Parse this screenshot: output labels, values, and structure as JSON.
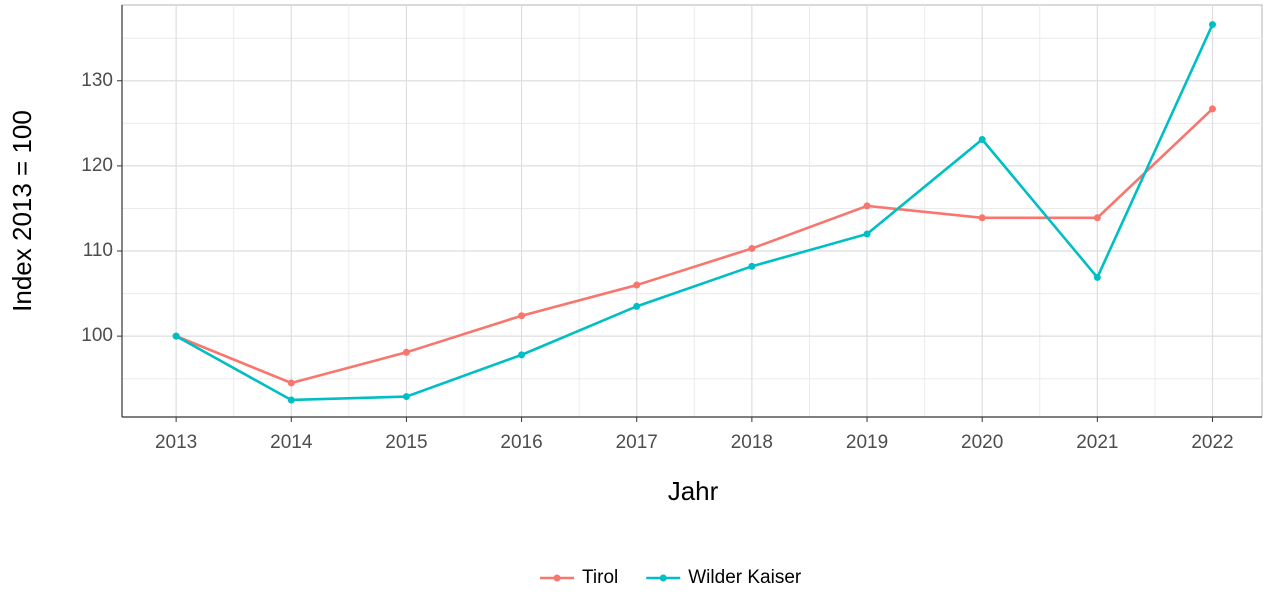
{
  "chart_data": {
    "type": "line",
    "x": [
      2013,
      2014,
      2015,
      2016,
      2017,
      2018,
      2019,
      2020,
      2021,
      2022
    ],
    "xlabel": "Jahr",
    "ylabel": "Index  2013  = 100",
    "series": [
      {
        "name": "Tirol",
        "color": "#f8766d",
        "values": [
          100,
          94.5,
          98.1,
          102.4,
          106.0,
          110.3,
          115.3,
          113.9,
          113.9,
          126.7
        ]
      },
      {
        "name": "Wilder Kaiser",
        "color": "#00bfc4",
        "values": [
          100,
          92.5,
          92.9,
          97.8,
          103.5,
          108.2,
          112.0,
          123.1,
          106.9,
          136.6
        ]
      }
    ],
    "xlim": [
      2012.53,
      2022.43
    ],
    "xticks": [
      2013,
      2014,
      2015,
      2016,
      2017,
      2018,
      2019,
      2020,
      2021,
      2022
    ],
    "ylim": [
      90.5,
      138.9
    ],
    "yticks": [
      100,
      110,
      120,
      130
    ],
    "grid": true,
    "legend": "bottom"
  }
}
